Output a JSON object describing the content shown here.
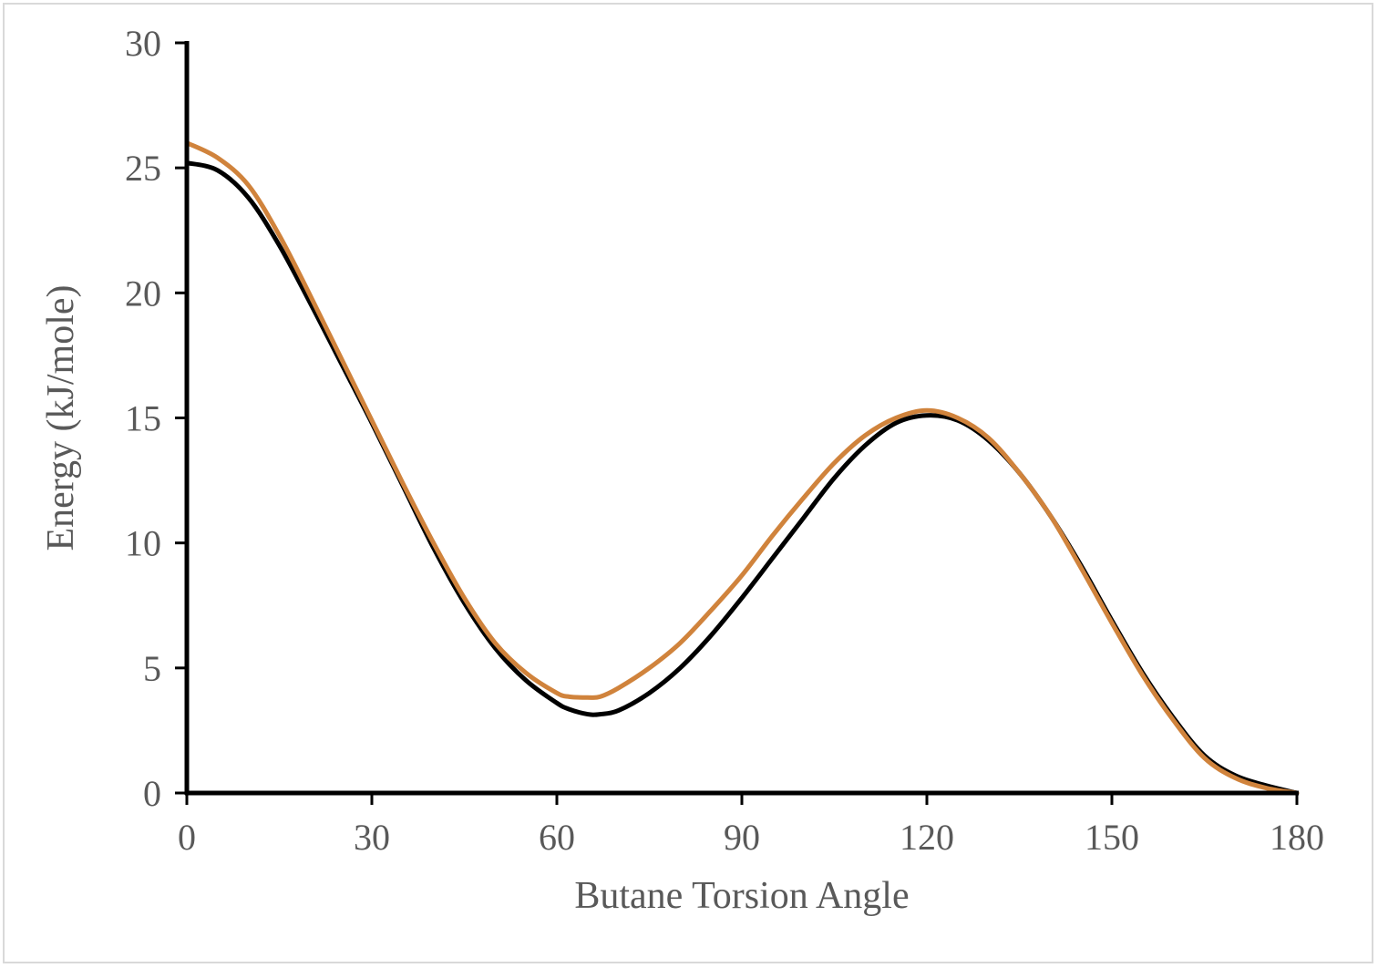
{
  "chart_data": {
    "type": "line",
    "title": "",
    "xlabel": "Butane Torsion Angle",
    "ylabel": "Energy (kJ/mole)",
    "xlim": [
      0,
      180
    ],
    "ylim": [
      0,
      30
    ],
    "xticks": [
      "0",
      "30",
      "60",
      "90",
      "120",
      "150",
      "180"
    ],
    "yticks": [
      "0",
      "5",
      "10",
      "15",
      "20",
      "25",
      "30"
    ],
    "grid": false,
    "legend": "none",
    "series": [
      {
        "color": "#000000",
        "x": [
          0,
          5,
          10,
          15,
          20,
          25,
          30,
          35,
          40,
          45,
          50,
          55,
          60,
          62,
          65,
          67,
          70,
          75,
          80,
          85,
          90,
          95,
          100,
          105,
          110,
          115,
          120,
          125,
          130,
          135,
          140,
          145,
          150,
          155,
          160,
          165,
          170,
          175,
          180
        ],
        "y": [
          25.2,
          24.9,
          23.8,
          21.9,
          19.6,
          17.2,
          14.8,
          12.3,
          9.8,
          7.6,
          5.8,
          4.5,
          3.6,
          3.35,
          3.15,
          3.15,
          3.3,
          4.0,
          5.0,
          6.3,
          7.8,
          9.4,
          11.0,
          12.6,
          13.9,
          14.8,
          15.1,
          14.9,
          14.1,
          12.8,
          11.1,
          9.1,
          6.9,
          4.8,
          3.0,
          1.5,
          0.7,
          0.3,
          0.0
        ]
      },
      {
        "color": "#d0833c",
        "x": [
          0,
          5,
          10,
          15,
          20,
          25,
          30,
          35,
          40,
          45,
          50,
          55,
          60,
          62,
          65,
          67,
          70,
          75,
          80,
          85,
          90,
          95,
          100,
          105,
          110,
          115,
          120,
          125,
          130,
          135,
          140,
          145,
          150,
          155,
          160,
          165,
          170,
          175,
          180
        ],
        "y": [
          26.0,
          25.4,
          24.3,
          22.3,
          19.9,
          17.4,
          14.9,
          12.4,
          10.0,
          7.8,
          6.0,
          4.8,
          4.0,
          3.85,
          3.82,
          3.85,
          4.2,
          5.0,
          6.0,
          7.3,
          8.7,
          10.3,
          11.8,
          13.2,
          14.3,
          15.0,
          15.3,
          15.0,
          14.2,
          12.8,
          11.1,
          9.0,
          6.8,
          4.7,
          2.9,
          1.4,
          0.6,
          0.2,
          0.0
        ]
      }
    ]
  }
}
